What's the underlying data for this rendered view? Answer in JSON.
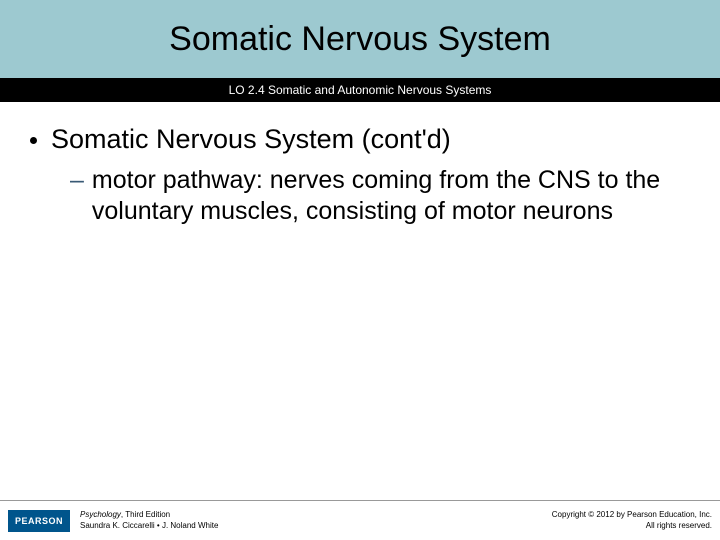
{
  "title_bar": {
    "text": "Somatic Nervous System",
    "background_color": "#9dc9d0",
    "text_color": "#000000",
    "font_size": 34
  },
  "subtitle_bar": {
    "text": "LO 2.4 Somatic and Autonomic Nervous Systems",
    "background_color": "#000000",
    "text_color": "#ffffff",
    "font_size": 12
  },
  "bullet": {
    "text": "Somatic Nervous System (cont'd)",
    "dash_color": "#385975",
    "sub_text": "motor pathway: nerves coming from the CNS to the voluntary muscles, consisting of motor neurons"
  },
  "footer": {
    "logo_text": "PEARSON",
    "logo_bg": "#00558c",
    "book_title": "Psychology",
    "edition": ", Third Edition",
    "authors": "Saundra K. Ciccarelli • J. Noland White",
    "copyright_line1": "Copyright © 2012 by Pearson Education, Inc.",
    "copyright_line2": "All rights reserved."
  }
}
